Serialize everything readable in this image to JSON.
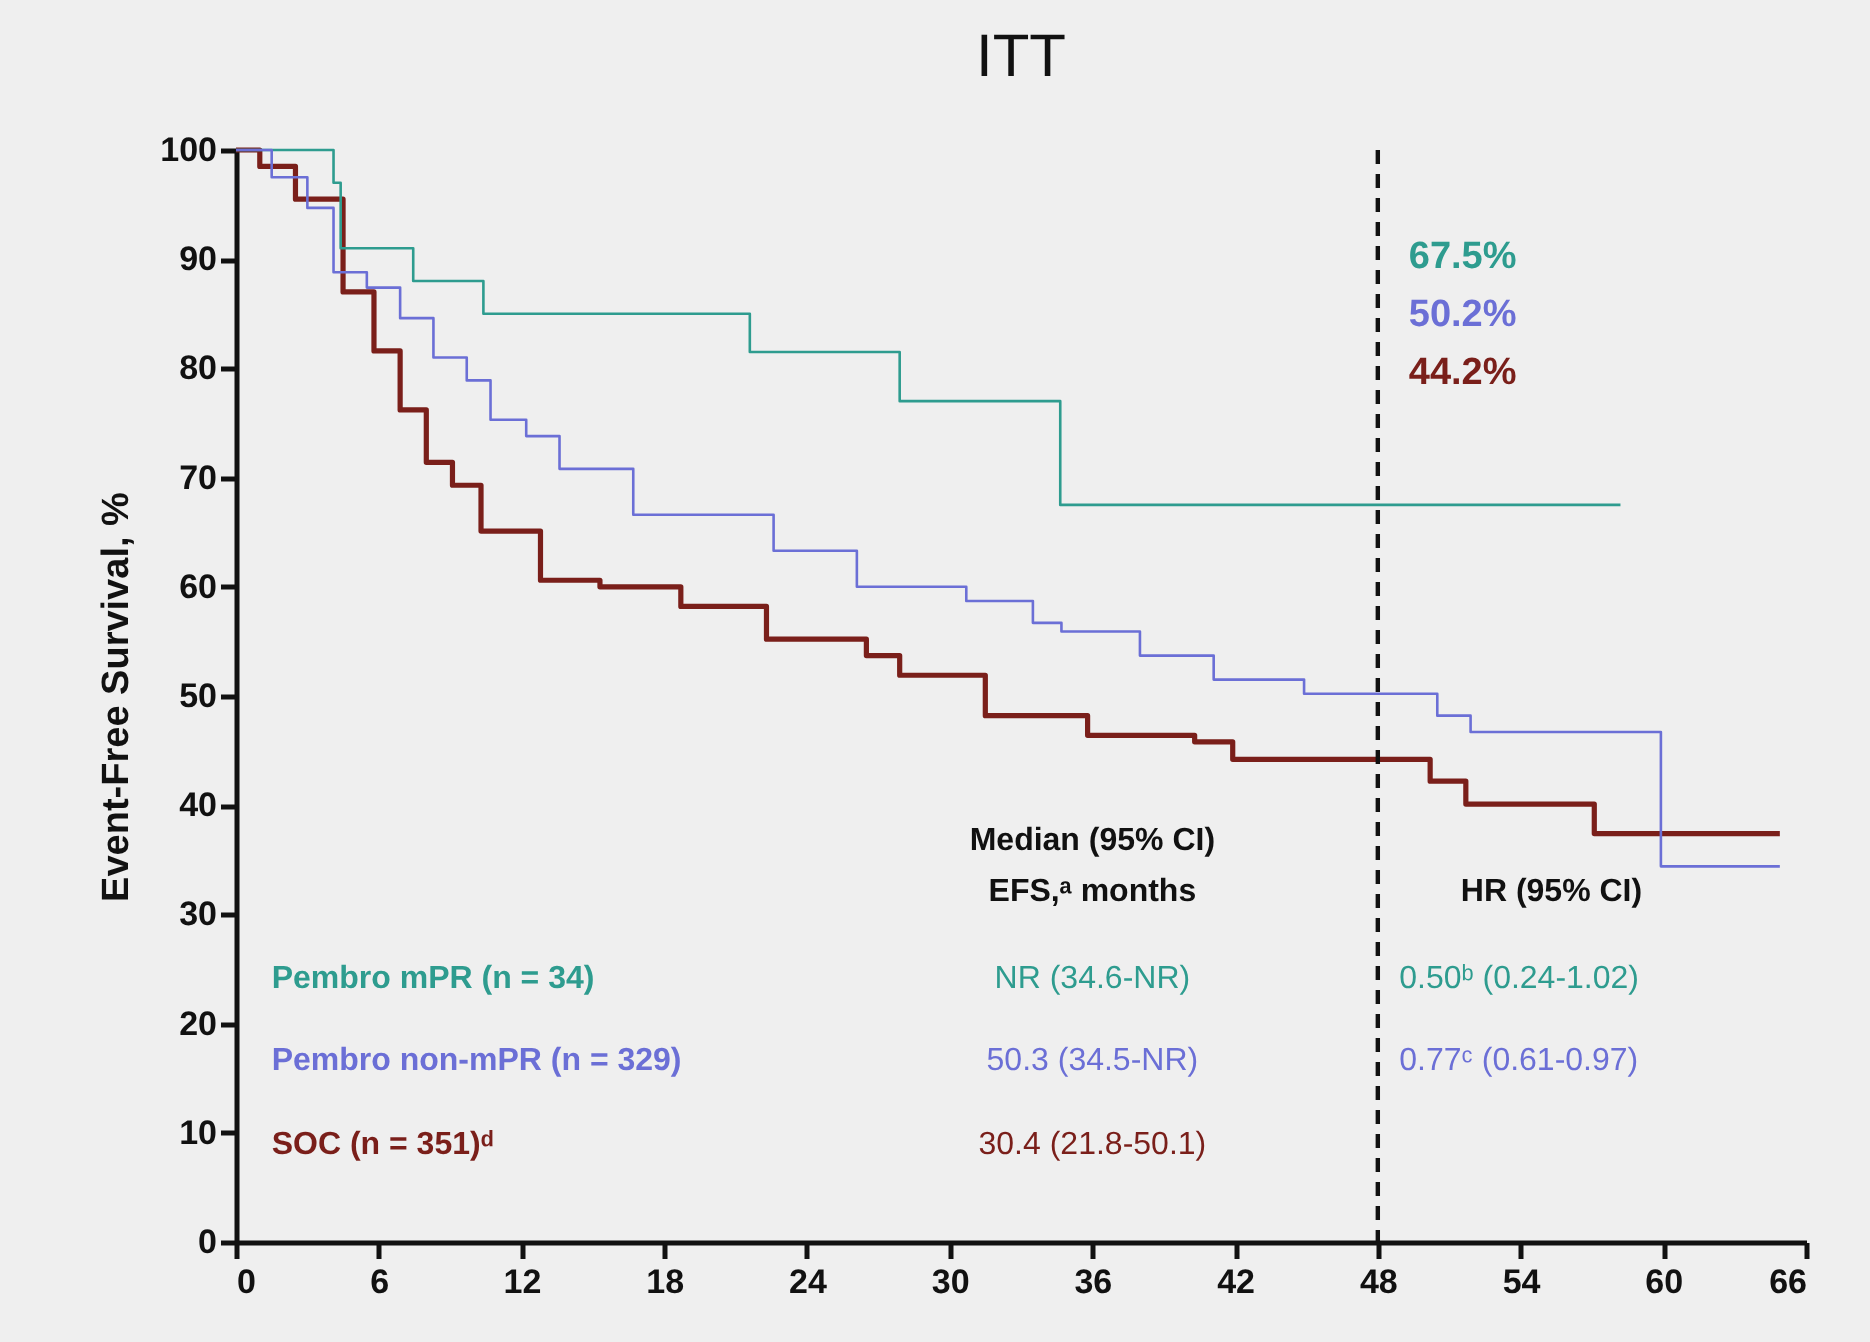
{
  "chart_data": {
    "type": "step",
    "title": "ITT",
    "ylabel": "Event-Free Survival, %",
    "xlim": [
      0,
      66
    ],
    "xticks": [
      0,
      6,
      12,
      18,
      24,
      30,
      36,
      42,
      48,
      54,
      60,
      66
    ],
    "ylim": [
      0,
      100
    ],
    "yticks": [
      0,
      10,
      20,
      30,
      40,
      50,
      60,
      70,
      80,
      90,
      100
    ],
    "grid": false,
    "legend": "bottom left",
    "ref_lines": [
      {
        "axis": "x",
        "value": 48,
        "line_style": "dashed",
        "color": "#111111"
      }
    ],
    "annotations": [
      "67.5%",
      "50.2%",
      "44.2%",
      "Median (95% CI)",
      "EFS,ᵃ months",
      "HR (95% CI)",
      "NR (34.6-NR)",
      "50.3 (34.5-NR)",
      "30.4 (21.8-50.1)",
      "0.50ᵇ (0.24-1.02)",
      "0.77ᶜ (0.61-0.97)"
    ],
    "series": [
      {
        "name": "Pembro mPR (n = 34)",
        "color": "#2e9c8f",
        "x": [
          0,
          4.1,
          4.4,
          7.45,
          10.4,
          21.6,
          27.9,
          34.65,
          58.2
        ],
        "values": [
          100,
          97,
          91,
          88,
          85,
          81.5,
          77,
          67.5,
          67.5
        ]
      },
      {
        "name": "Pembro non-mPR (n = 329)",
        "color": "#6b6fd6",
        "x": [
          0,
          1.5,
          3.0,
          4.1,
          5.5,
          6.9,
          8.3,
          9.7,
          10.7,
          12.2,
          13.6,
          16.7,
          21.5,
          22.6,
          26.1,
          30.7,
          33.5,
          34.7,
          38.0,
          41.1,
          44.9,
          50.5,
          51.9,
          59.9,
          64.9
        ],
        "values": [
          100,
          97.5,
          94.7,
          88.8,
          87.4,
          84.6,
          81,
          78.9,
          75.3,
          73.8,
          70.8,
          66.6,
          66.6,
          63.3,
          60,
          58.7,
          56.7,
          55.9,
          53.7,
          51.5,
          50.2,
          48.2,
          46.7,
          34.4,
          34.4
        ]
      },
      {
        "name": "SOC (n = 351)ᵈ",
        "color": "#7a1f1a",
        "x": [
          0,
          1.0,
          2.5,
          4.5,
          5.8,
          6.9,
          8.0,
          9.1,
          10.3,
          12.8,
          15.3,
          18.7,
          22.3,
          26.5,
          27.9,
          31.5,
          35.8,
          40.3,
          41.9,
          50.2,
          51.7,
          57.1,
          64.9
        ],
        "values": [
          100,
          98.5,
          95.5,
          87,
          81.6,
          76.2,
          71.4,
          69.3,
          65.1,
          60.6,
          60,
          58.2,
          55.2,
          53.7,
          51.9,
          48.2,
          46.4,
          45.8,
          44.2,
          42.2,
          40.1,
          37.4,
          37.4
        ]
      }
    ]
  }
}
